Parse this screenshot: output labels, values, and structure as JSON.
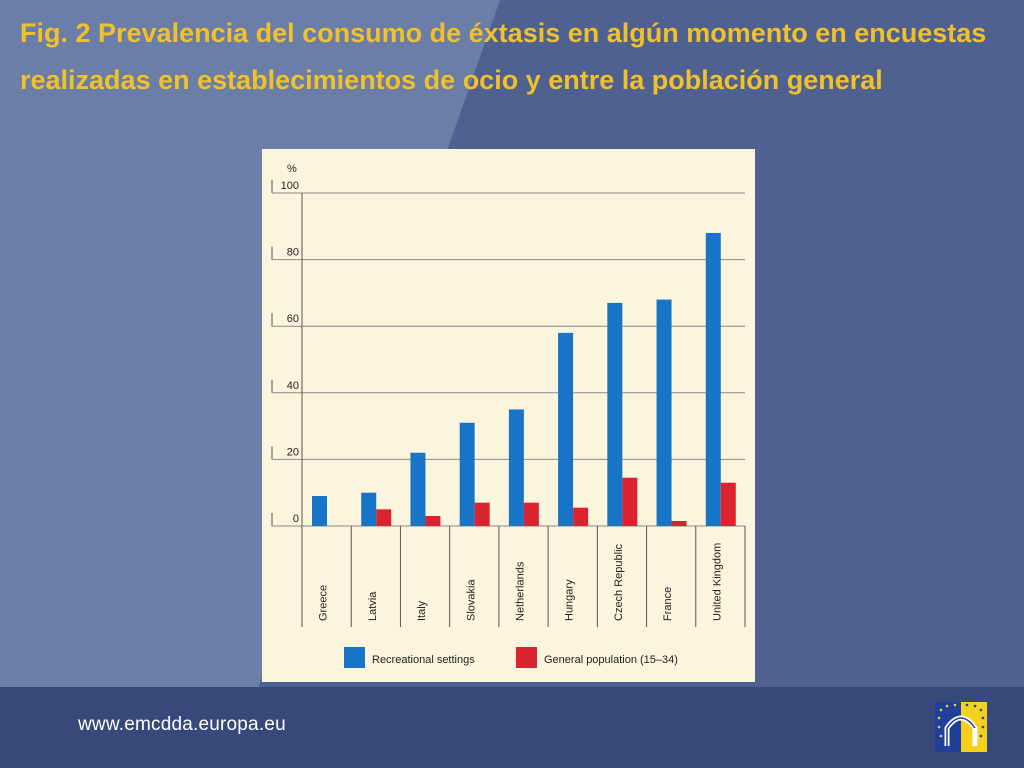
{
  "slide": {
    "title": "Fig. 2 Prevalencia del consumo de éxtasis en algún momento en encuestas realizadas en establecimientos de ocio y entre la población general",
    "footer_url": "www.emcdda.europa.eu",
    "logo_icon": "emcdda-eu-logo-icon",
    "colors": {
      "background": "#4e6190",
      "title": "#f0c12a",
      "footer": "#36497a",
      "panel": "#faf5dc"
    }
  },
  "chart_data": {
    "type": "bar",
    "ylabel": "%",
    "ylim": [
      0,
      100
    ],
    "yticks": [
      0,
      20,
      40,
      60,
      80,
      100
    ],
    "grid": true,
    "legend_position": "bottom",
    "categories": [
      "Greece",
      "Latvia",
      "Italy",
      "Slovakia",
      "Netherlands",
      "Hungary",
      "Czech Republic",
      "France",
      "United Kingdom"
    ],
    "series": [
      {
        "name": "Recreational settings",
        "color": "#1874c6",
        "values": [
          9,
          10,
          22,
          31,
          35,
          58,
          67,
          68,
          88
        ]
      },
      {
        "name": "General population (15–34)",
        "color": "#d9232e",
        "values": [
          null,
          5,
          3,
          7,
          7,
          5.5,
          14.5,
          1.5,
          13
        ]
      }
    ]
  }
}
